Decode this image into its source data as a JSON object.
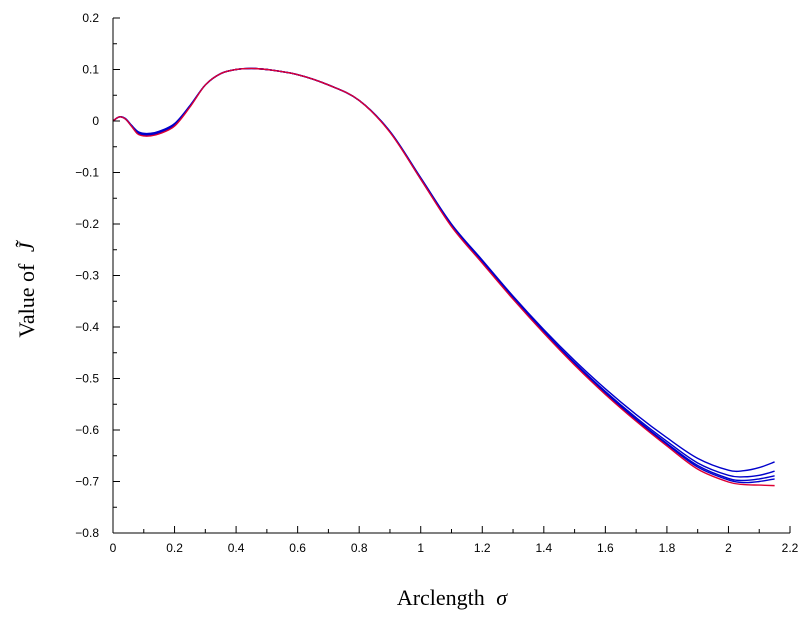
{
  "chart_data": {
    "type": "line",
    "title": "",
    "xlabel": "Arclength",
    "xlabel_symbol": "σ",
    "ylabel": "Value of",
    "ylabel_symbol": "J̃",
    "xlim": [
      0,
      2.2
    ],
    "ylim": [
      -0.8,
      0.2
    ],
    "x_ticks": [
      0,
      0.2,
      0.4,
      0.6,
      0.8,
      1,
      1.2,
      1.4,
      1.6,
      1.8,
      2,
      2.2
    ],
    "x_tick_labels": [
      "0",
      "0.2",
      "0.4",
      "0.6",
      "0.8",
      "1",
      "1.2",
      "1.4",
      "1.6",
      "1.8",
      "2",
      "2.2"
    ],
    "y_ticks": [
      -0.8,
      -0.7,
      -0.6,
      -0.5,
      -0.4,
      -0.3,
      -0.2,
      -0.1,
      0,
      0.1,
      0.2
    ],
    "y_tick_labels": [
      "−0.8",
      "−0.7",
      "−0.6",
      "−0.5",
      "−0.4",
      "−0.3",
      "−0.2",
      "−0.1",
      "0",
      "0.1",
      "0.2"
    ],
    "grid": false,
    "legend": "none",
    "x": [
      0,
      0.02,
      0.04,
      0.06,
      0.08,
      0.1,
      0.12,
      0.15,
      0.2,
      0.25,
      0.3,
      0.35,
      0.4,
      0.45,
      0.5,
      0.6,
      0.7,
      0.8,
      0.9,
      1.0,
      1.1,
      1.2,
      1.3,
      1.4,
      1.5,
      1.6,
      1.7,
      1.8,
      1.9,
      2.0,
      2.05,
      2.1,
      2.15
    ],
    "series": [
      {
        "color": "#0000cc",
        "values": [
          0,
          0.008,
          0.005,
          -0.008,
          -0.02,
          -0.024,
          -0.024,
          -0.02,
          -0.005,
          0.03,
          0.07,
          0.092,
          0.1,
          0.102,
          0.1,
          0.09,
          0.07,
          0.04,
          -0.02,
          -0.11,
          -0.2,
          -0.27,
          -0.34,
          -0.405,
          -0.465,
          -0.52,
          -0.57,
          -0.615,
          -0.655,
          -0.678,
          -0.679,
          -0.673,
          -0.662
        ]
      },
      {
        "color": "#0000cc",
        "values": [
          0,
          0.008,
          0.005,
          -0.009,
          -0.022,
          -0.026,
          -0.026,
          -0.022,
          -0.007,
          0.029,
          0.07,
          0.092,
          0.1,
          0.102,
          0.1,
          0.09,
          0.07,
          0.04,
          -0.021,
          -0.112,
          -0.202,
          -0.273,
          -0.343,
          -0.408,
          -0.469,
          -0.525,
          -0.576,
          -0.622,
          -0.664,
          -0.688,
          -0.691,
          -0.688,
          -0.68
        ]
      },
      {
        "color": "#0000cc",
        "values": [
          0,
          0.008,
          0.004,
          -0.009,
          -0.023,
          -0.027,
          -0.027,
          -0.023,
          -0.008,
          0.028,
          0.07,
          0.092,
          0.1,
          0.102,
          0.1,
          0.09,
          0.07,
          0.04,
          -0.021,
          -0.112,
          -0.203,
          -0.274,
          -0.344,
          -0.41,
          -0.471,
          -0.527,
          -0.579,
          -0.626,
          -0.669,
          -0.694,
          -0.698,
          -0.695,
          -0.689
        ]
      },
      {
        "color": "#0000cc",
        "values": [
          0,
          0.008,
          0.004,
          -0.01,
          -0.024,
          -0.028,
          -0.028,
          -0.024,
          -0.009,
          0.028,
          0.07,
          0.092,
          0.1,
          0.102,
          0.1,
          0.09,
          0.07,
          0.04,
          -0.021,
          -0.113,
          -0.204,
          -0.275,
          -0.345,
          -0.411,
          -0.472,
          -0.529,
          -0.581,
          -0.628,
          -0.672,
          -0.697,
          -0.702,
          -0.7,
          -0.695
        ]
      },
      {
        "color": "#dd0033",
        "values": [
          0,
          0.008,
          0.004,
          -0.01,
          -0.025,
          -0.029,
          -0.029,
          -0.025,
          -0.01,
          0.027,
          0.07,
          0.092,
          0.1,
          0.102,
          0.1,
          0.09,
          0.07,
          0.04,
          -0.022,
          -0.113,
          -0.205,
          -0.276,
          -0.346,
          -0.412,
          -0.474,
          -0.531,
          -0.583,
          -0.631,
          -0.676,
          -0.701,
          -0.706,
          -0.707,
          -0.708
        ]
      }
    ]
  }
}
